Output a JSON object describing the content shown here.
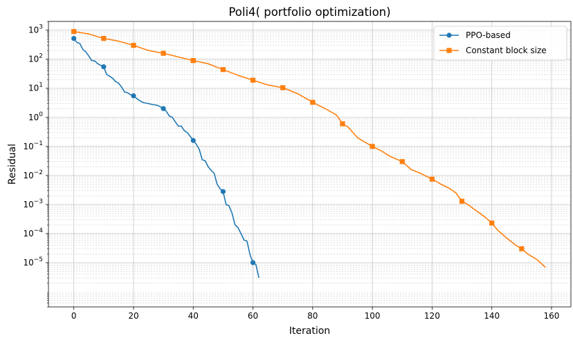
{
  "chart_data": {
    "type": "line",
    "title": "Poli4( portfolio optimization)",
    "xlabel": "Iteration",
    "ylabel": "Residual",
    "xlim": [
      -8.5,
      166.5
    ],
    "ylim": [
      3e-07,
      2000
    ],
    "yscale": "log",
    "xticks": [
      0,
      20,
      40,
      60,
      80,
      100,
      120,
      140,
      160
    ],
    "yticks": [
      {
        "base": "10",
        "exp": "3"
      },
      {
        "base": "10",
        "exp": "2"
      },
      {
        "base": "10",
        "exp": "1"
      },
      {
        "base": "10",
        "exp": "0"
      },
      {
        "base": "10",
        "exp": "−1"
      },
      {
        "base": "10",
        "exp": "−2"
      },
      {
        "base": "10",
        "exp": "−3"
      },
      {
        "base": "10",
        "exp": "−4"
      },
      {
        "base": "10",
        "exp": "−5"
      }
    ],
    "grid": true,
    "legend_position": "top-right",
    "series": [
      {
        "name": "PPO-based",
        "color": "#1f77b4",
        "marker": "circle",
        "markevery": 10,
        "x": [
          0,
          1,
          2,
          3,
          4,
          5,
          6,
          7,
          8,
          9,
          10,
          11,
          12,
          13,
          14,
          15,
          16,
          17,
          18,
          19,
          20,
          21,
          22,
          23,
          24,
          25,
          26,
          27,
          28,
          29,
          30,
          31,
          32,
          33,
          34,
          35,
          36,
          37,
          38,
          39,
          40,
          41,
          42,
          43,
          44,
          45,
          46,
          47,
          48,
          49,
          50,
          51,
          52,
          53,
          54,
          55,
          56,
          57,
          58,
          59,
          60,
          61,
          62
        ],
        "y": [
          520,
          380,
          350,
          220,
          180,
          130,
          90,
          88,
          70,
          62,
          55,
          30,
          26,
          22,
          17,
          15,
          11,
          7.5,
          7,
          6,
          5.5,
          4.5,
          3.8,
          3.3,
          3.1,
          3.0,
          2.8,
          2.7,
          2.6,
          2.3,
          2.0,
          1.6,
          1.1,
          1.0,
          0.7,
          0.5,
          0.5,
          0.35,
          0.3,
          0.22,
          0.16,
          0.12,
          0.08,
          0.035,
          0.032,
          0.02,
          0.015,
          0.012,
          0.005,
          0.0035,
          0.0028,
          0.001,
          0.0009,
          0.0005,
          0.0002,
          0.00016,
          0.0001,
          6e-05,
          5.5e-05,
          1.9e-05,
          1e-05,
          8.5e-06,
          3e-06
        ]
      },
      {
        "name": "Constant block size",
        "color": "#ff7f0e",
        "marker": "square",
        "markevery": 10,
        "x": [
          0,
          5,
          10,
          15,
          20,
          25,
          30,
          35,
          40,
          45,
          50,
          55,
          60,
          65,
          70,
          75,
          80,
          85,
          88,
          90,
          92,
          95,
          97,
          100,
          103,
          106,
          110,
          113,
          116,
          120,
          123,
          126,
          128,
          130,
          132,
          134,
          136,
          138,
          140,
          142,
          145,
          148,
          150,
          152,
          155,
          157,
          158
        ],
        "y": [
          900,
          740,
          520,
          420,
          300,
          200,
          160,
          120,
          90,
          70,
          44,
          28,
          19,
          13,
          10.5,
          6.5,
          3.3,
          1.8,
          1.2,
          0.6,
          0.45,
          0.2,
          0.15,
          0.1,
          0.07,
          0.045,
          0.03,
          0.016,
          0.012,
          0.0075,
          0.005,
          0.0035,
          0.0025,
          0.0013,
          0.001,
          0.0007,
          0.0005,
          0.00035,
          0.00023,
          0.00013,
          7e-05,
          4e-05,
          3e-05,
          2e-05,
          1.3e-05,
          8.5e-06,
          6.8e-06
        ]
      }
    ]
  }
}
